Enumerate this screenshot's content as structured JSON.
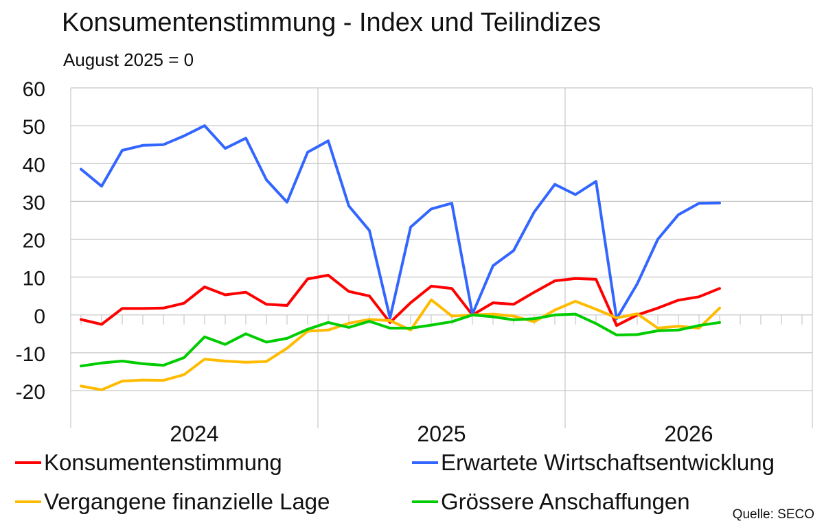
{
  "chart_data": {
    "type": "line",
    "title": "Konsumentenstimmung - Index und Teilindizes",
    "subtitle": "August 2025 = 0",
    "ylim": [
      -20,
      60
    ],
    "y_ticks": [
      "-20",
      "-10",
      "0",
      "10",
      "20",
      "30",
      "40",
      "50",
      "60"
    ],
    "x_year_labels": [
      "2024",
      "2025",
      "2026"
    ],
    "months_per_year": 12,
    "grid": true,
    "legend_position": "bottom",
    "series": [
      {
        "name": "Konsumentenstimmung",
        "color": "#ff0000",
        "values": [
          -1.2,
          -2.5,
          1.7,
          1.7,
          1.8,
          3.1,
          7.4,
          5.3,
          6.0,
          2.8,
          2.5,
          9.5,
          10.5,
          6.2,
          5.0,
          -2.0,
          3.2,
          7.6,
          7.0,
          0.0,
          3.2,
          2.8,
          6.0,
          9.0,
          9.6,
          9.4,
          -2.8,
          0.0,
          1.8,
          3.9,
          4.8,
          7.0
        ]
      },
      {
        "name": "Erwartete Wirtschaftsentwicklung",
        "color": "#3366ff",
        "values": [
          38.5,
          34.0,
          43.5,
          44.8,
          45.0,
          47.3,
          50.0,
          44.0,
          46.7,
          35.7,
          29.8,
          43.0,
          46.0,
          28.8,
          22.3,
          -0.8,
          23.2,
          28.0,
          29.5,
          0.2,
          13.0,
          17.0,
          27.2,
          34.5,
          31.8,
          35.3,
          -1.0,
          8.2,
          20.0,
          26.5,
          29.5,
          29.6
        ]
      },
      {
        "name": "Vergangene finanzielle Lage",
        "color": "#ffbb00",
        "values": [
          -18.8,
          -19.8,
          -17.5,
          -17.2,
          -17.3,
          -15.8,
          -11.7,
          -12.2,
          -12.5,
          -12.3,
          -8.8,
          -4.3,
          -4.0,
          -2.2,
          -1.2,
          -1.5,
          -4.0,
          4.0,
          -0.3,
          0.0,
          0.2,
          -0.3,
          -1.8,
          1.3,
          3.6,
          1.5,
          -0.8,
          0.3,
          -3.5,
          -3.0,
          -3.5,
          1.8
        ]
      },
      {
        "name": "Grössere Anschaffungen",
        "color": "#00cc00",
        "values": [
          -13.5,
          -12.7,
          -12.2,
          -12.9,
          -13.3,
          -11.3,
          -5.8,
          -7.8,
          -5.0,
          -7.2,
          -6.2,
          -3.8,
          -2.0,
          -3.3,
          -1.7,
          -3.5,
          -3.5,
          -2.7,
          -1.8,
          0.0,
          -0.5,
          -1.3,
          -1.0,
          0.0,
          0.2,
          -2.3,
          -5.3,
          -5.2,
          -4.2,
          -4.0,
          -2.8,
          -2.0
        ]
      }
    ]
  },
  "source_note": "Quelle: SECO"
}
